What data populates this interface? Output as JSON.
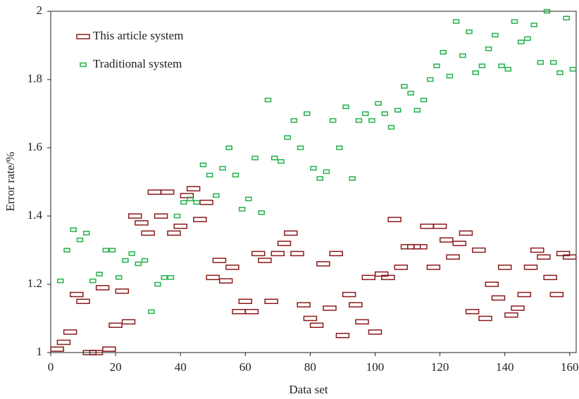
{
  "chart_data": {
    "type": "scatter",
    "xlabel": "Data set",
    "ylabel": "Error rate/%",
    "xlim": [
      0,
      162
    ],
    "ylim": [
      1,
      2
    ],
    "xticks": [
      0,
      20,
      40,
      60,
      80,
      100,
      120,
      140,
      160
    ],
    "yticks": [
      1,
      1.2,
      1.4,
      1.6,
      1.8,
      2
    ],
    "legend": "upper left",
    "series": [
      {
        "name": "This article system",
        "color": "#8b1a1a",
        "x": [
          2,
          4,
          6,
          8,
          10,
          12,
          14,
          16,
          18,
          20,
          22,
          24,
          26,
          28,
          30,
          32,
          34,
          36,
          38,
          40,
          42,
          44,
          46,
          48,
          50,
          52,
          54,
          56,
          58,
          60,
          62,
          64,
          66,
          68,
          70,
          72,
          74,
          76,
          78,
          80,
          82,
          84,
          86,
          88,
          90,
          92,
          94,
          96,
          98,
          100,
          102,
          104,
          106,
          108,
          110,
          112,
          114,
          116,
          118,
          120,
          122,
          124,
          126,
          128,
          130,
          132,
          134,
          136,
          138,
          140,
          142,
          144,
          146,
          148,
          150,
          152,
          154,
          156,
          158,
          160
        ],
        "values": [
          1.01,
          1.03,
          1.06,
          1.17,
          1.15,
          1.0,
          1.0,
          1.19,
          1.01,
          1.08,
          1.18,
          1.09,
          1.4,
          1.38,
          1.35,
          1.47,
          1.4,
          1.47,
          1.35,
          1.37,
          1.46,
          1.48,
          1.39,
          1.44,
          1.22,
          1.27,
          1.21,
          1.25,
          1.12,
          1.15,
          1.12,
          1.29,
          1.27,
          1.15,
          1.29,
          1.32,
          1.35,
          1.29,
          1.14,
          1.1,
          1.08,
          1.26,
          1.13,
          1.29,
          1.05,
          1.17,
          1.14,
          1.09,
          1.22,
          1.06,
          1.23,
          1.22,
          1.39,
          1.25,
          1.31,
          1.31,
          1.31,
          1.37,
          1.25,
          1.37,
          1.33,
          1.28,
          1.32,
          1.35,
          1.12,
          1.3,
          1.1,
          1.2,
          1.16,
          1.25,
          1.11,
          1.13,
          1.17,
          1.25,
          1.3,
          1.28,
          1.22,
          1.17,
          1.29,
          1.28
        ]
      },
      {
        "name": "Traditional system",
        "color": "#22b14c",
        "x": [
          3,
          5,
          7,
          9,
          11,
          13,
          15,
          17,
          19,
          21,
          23,
          25,
          27,
          29,
          31,
          33,
          35,
          37,
          39,
          41,
          43,
          45,
          47,
          49,
          51,
          53,
          55,
          57,
          59,
          61,
          63,
          65,
          67,
          69,
          71,
          73,
          75,
          77,
          79,
          81,
          83,
          85,
          87,
          89,
          91,
          93,
          95,
          97,
          99,
          101,
          103,
          105,
          107,
          109,
          111,
          113,
          115,
          117,
          119,
          121,
          123,
          125,
          127,
          129,
          131,
          133,
          135,
          137,
          139,
          141,
          143,
          145,
          147,
          149,
          151,
          153,
          155,
          157,
          159,
          161
        ],
        "values": [
          1.21,
          1.3,
          1.36,
          1.33,
          1.35,
          1.21,
          1.23,
          1.3,
          1.3,
          1.22,
          1.27,
          1.29,
          1.26,
          1.27,
          1.12,
          1.2,
          1.22,
          1.22,
          1.4,
          1.44,
          1.45,
          1.44,
          1.55,
          1.52,
          1.46,
          1.54,
          1.6,
          1.52,
          1.42,
          1.45,
          1.57,
          1.41,
          1.74,
          1.57,
          1.56,
          1.63,
          1.68,
          1.6,
          1.7,
          1.54,
          1.51,
          1.53,
          1.68,
          1.6,
          1.72,
          1.51,
          1.68,
          1.7,
          1.68,
          1.73,
          1.7,
          1.66,
          1.71,
          1.78,
          1.76,
          1.71,
          1.74,
          1.8,
          1.84,
          1.88,
          1.81,
          1.97,
          1.87,
          1.94,
          1.82,
          1.84,
          1.89,
          1.93,
          1.84,
          1.83,
          1.97,
          1.91,
          1.92,
          1.96,
          1.85,
          2.0,
          1.85,
          1.82,
          1.98,
          1.83
        ]
      }
    ]
  }
}
